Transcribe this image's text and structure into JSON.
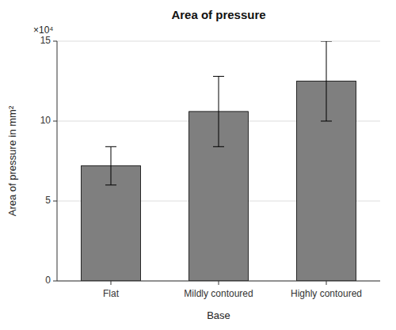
{
  "chart_data": {
    "type": "bar",
    "title": "Area of pressure",
    "x_label": "Base",
    "y_label": "Area of pressure in mm²",
    "categories": [
      "Flat",
      "Mildly contoured",
      "Highly contoured"
    ],
    "values": [
      7.2,
      10.6,
      12.5
    ],
    "errors": [
      1.2,
      2.2,
      2.5
    ],
    "color": "#7f7f7f",
    "ylim": [
      0,
      15
    ],
    "yticks": [
      0,
      5,
      10,
      15
    ],
    "grid": true,
    "annotations": [
      "×10⁴"
    ]
  }
}
